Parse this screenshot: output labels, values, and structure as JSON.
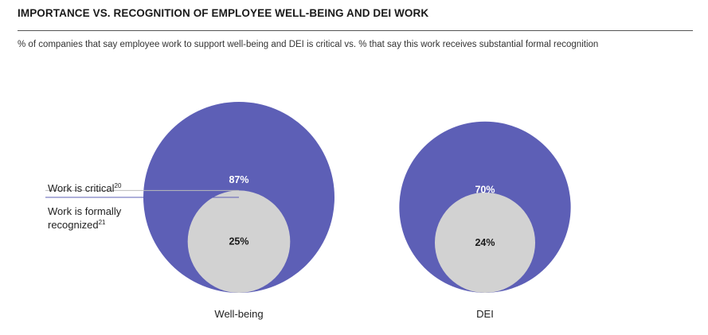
{
  "chart_title": "IMPORTANCE VS. RECOGNITION OF EMPLOYEE WELL-BEING AND DEI WORK",
  "chart_subtitle": "% of companies that say employee work to support well-being and DEI is critical vs. % that say this work receives substantial formal recognition",
  "colors": {
    "outer": "#5d5fb6",
    "inner": "#d2d2d2",
    "leader": "#5d5fb6",
    "leader_inner": "#bbbbbb"
  },
  "chart_data": {
    "type": "bubble",
    "title": "IMPORTANCE VS. RECOGNITION OF EMPLOYEE WELL-BEING AND DEI WORK",
    "subtitle": "% of companies that say employee work to support well-being and DEI is critical vs. % that say this work receives substantial formal recognition",
    "categories": [
      "Well-being",
      "DEI"
    ],
    "series": [
      {
        "name": "Work is critical",
        "footnote": "20",
        "values": [
          87,
          70
        ],
        "labels": [
          "87%",
          "70%"
        ]
      },
      {
        "name": "Work is formally recognized",
        "name_line1": "Work is formally",
        "name_line2": "recognized",
        "footnote": "21",
        "values": [
          25,
          24
        ],
        "labels": [
          "25%",
          "24%"
        ]
      }
    ]
  }
}
